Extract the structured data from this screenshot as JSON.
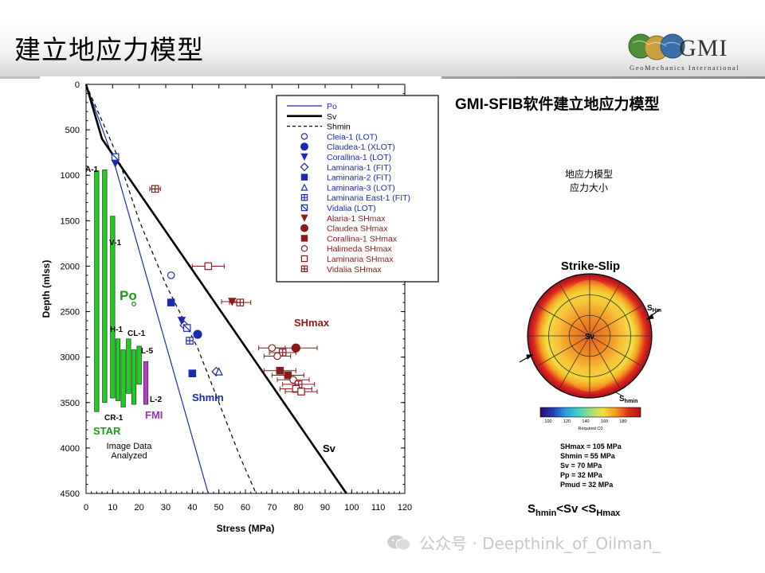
{
  "slide": {
    "title": "建立地应力模型",
    "logo": {
      "text": "GMI",
      "subtitle": "GeoMechanics International",
      "colors": [
        "#4f8f3a",
        "#c8a040",
        "#3a6fa8"
      ]
    },
    "right_title": "GMI-SFIB软件建立地应力模型",
    "right_note_lines": [
      "地应力模型",
      "应力大小"
    ],
    "stereonet": {
      "title": "Strike-Slip",
      "center_label": "Sv",
      "shmax_label": {
        "main": "S",
        "sub": "Hmax"
      },
      "shmin_label": {
        "main": "S",
        "sub": "hmin"
      },
      "colorbar_ticks": [
        "100",
        "120",
        "140",
        "160",
        "180"
      ],
      "colorbar_label": "Required C0",
      "colors": [
        "#2b0a6e",
        "#1f3fb5",
        "#2f9be0",
        "#3fd0c8",
        "#9ae07a",
        "#f0e040",
        "#f59a20",
        "#e0301e",
        "#b0101e"
      ]
    },
    "params": [
      "SHmax = 105 MPa",
      "Shmin = 55 MPa",
      "Sv = 70 MPa",
      "Pp = 32 MPa",
      "Pmud = 32 MPa"
    ],
    "relation": {
      "s1": "S",
      "s1_sub": "hmin",
      "mid": "<Sv <S",
      "s2_sub": "Hmax"
    },
    "watermark": "公众号 · Deepthink_of_Oilman_"
  },
  "chart_data": {
    "type": "scatter",
    "xlabel": "Stress (MPa)",
    "ylabel": "Depth (mlss)",
    "xlim": [
      0,
      120
    ],
    "ylim": [
      0,
      4500
    ],
    "y_inverted": true,
    "x_ticks": [
      0,
      10,
      20,
      30,
      40,
      50,
      60,
      70,
      80,
      90,
      100,
      110,
      120
    ],
    "y_ticks": [
      0,
      500,
      1000,
      1500,
      2000,
      2500,
      3000,
      3500,
      4000,
      4500
    ],
    "colors": {
      "blue": "#1a2ab0",
      "red": "#8b1a1a",
      "black": "#000000",
      "green": "#22cc22",
      "purple": "#b040c0",
      "shmax_text": "#8b1a1a",
      "p0_text": "#1a9a1a",
      "fmi_text": "#9a30b0"
    },
    "lines": [
      {
        "name": "Po",
        "style": "solid",
        "color": "#1a2ab0",
        "points": [
          [
            0,
            0
          ],
          [
            10,
            800
          ],
          [
            46,
            4500
          ]
        ]
      },
      {
        "name": "Sv",
        "style": "solid-bold",
        "color": "#000000",
        "points": [
          [
            0,
            0
          ],
          [
            6,
            600
          ],
          [
            98,
            4500
          ]
        ]
      },
      {
        "name": "Shmin",
        "style": "dashed",
        "color": "#000000",
        "points": [
          [
            0,
            0
          ],
          [
            12,
            800
          ],
          [
            20,
            1500
          ],
          [
            30,
            2200
          ],
          [
            42,
            2900
          ],
          [
            50,
            3500
          ],
          [
            58,
            4100
          ],
          [
            64,
            4500
          ]
        ]
      }
    ],
    "legend": {
      "placement": "top-right",
      "entries": [
        {
          "label": "Po",
          "symbol": "line",
          "color": "#1a2ab0"
        },
        {
          "label": "Sv",
          "symbol": "line-bold",
          "color": "#000000"
        },
        {
          "label": "Shmin",
          "symbol": "line-dashed",
          "color": "#000000"
        },
        {
          "label": "Cleia-1 (LOT)",
          "symbol": "circle-open",
          "color": "#1a2ab0"
        },
        {
          "label": "Claudea-1 (XLOT)",
          "symbol": "circle-filled",
          "color": "#1a2ab0"
        },
        {
          "label": "Corallina-1 (LOT)",
          "symbol": "triangle-down-filled",
          "color": "#1a2ab0"
        },
        {
          "label": "Laminaria-1 (FIT)",
          "symbol": "diamond-open",
          "color": "#1a2ab0"
        },
        {
          "label": "Laminaria-2 (FIT)",
          "symbol": "square-filled",
          "color": "#1a2ab0"
        },
        {
          "label": "Laminaria-3 (LOT)",
          "symbol": "triangle-up-open",
          "color": "#1a2ab0"
        },
        {
          "label": "Laminaria East-1 (FIT)",
          "symbol": "square-plus",
          "color": "#1a2ab0"
        },
        {
          "label": "Vidalia (LOT)",
          "symbol": "square-slash",
          "color": "#1a2ab0"
        },
        {
          "label": "Alaria-1 SHmax",
          "symbol": "triangle-down-filled",
          "color": "#8b1a1a"
        },
        {
          "label": "Claudea SHmax",
          "symbol": "circle-filled",
          "color": "#8b1a1a"
        },
        {
          "label": "Corallina-1 SHmax",
          "symbol": "square-filled",
          "color": "#8b1a1a"
        },
        {
          "label": "Halimeda SHmax",
          "symbol": "circle-open",
          "color": "#8b1a1a"
        },
        {
          "label": "Laminaria SHmax",
          "symbol": "square-open",
          "color": "#8b1a1a"
        },
        {
          "label": "Vidalia SHmax",
          "symbol": "square-plus",
          "color": "#8b1a1a"
        }
      ]
    },
    "points": [
      {
        "x": 11,
        "y": 800,
        "symbol": "square-slash",
        "color": "#1a2ab0"
      },
      {
        "x": 11,
        "y": 870,
        "symbol": "triangle-down-filled",
        "color": "#1a2ab0"
      },
      {
        "x": 32,
        "y": 2100,
        "symbol": "circle-open",
        "color": "#1a2ab0"
      },
      {
        "x": 32,
        "y": 2400,
        "symbol": "square-filled",
        "color": "#1a2ab0"
      },
      {
        "x": 36,
        "y": 2600,
        "symbol": "triangle-down-filled",
        "color": "#1a2ab0"
      },
      {
        "x": 37,
        "y": 2650,
        "symbol": "diamond-open",
        "color": "#1a2ab0"
      },
      {
        "x": 38,
        "y": 2680,
        "symbol": "square-slash",
        "color": "#1a2ab0"
      },
      {
        "x": 42,
        "y": 2750,
        "symbol": "circle-filled",
        "color": "#1a2ab0"
      },
      {
        "x": 39,
        "y": 2820,
        "symbol": "square-plus",
        "color": "#1a2ab0"
      },
      {
        "x": 40,
        "y": 3180,
        "symbol": "square-filled",
        "color": "#1a2ab0"
      },
      {
        "x": 49,
        "y": 3160,
        "symbol": "diamond-open",
        "color": "#1a2ab0"
      },
      {
        "x": 50,
        "y": 3160,
        "symbol": "triangle-up-open",
        "color": "#1a2ab0"
      },
      {
        "x": 26,
        "y": 1150,
        "symbol": "square-plus",
        "color": "#8b1a1a",
        "xerr": 2
      },
      {
        "x": 46,
        "y": 2000,
        "symbol": "square-open",
        "color": "#8b1a1a",
        "xerr": 6
      },
      {
        "x": 55,
        "y": 2390,
        "symbol": "triangle-down-filled",
        "color": "#8b1a1a",
        "xerr": 4
      },
      {
        "x": 58,
        "y": 2400,
        "symbol": "square-plus",
        "color": "#8b1a1a",
        "xerr": 4
      },
      {
        "x": 79,
        "y": 2900,
        "symbol": "circle-filled",
        "color": "#8b1a1a",
        "xerr": 8
      },
      {
        "x": 70,
        "y": 2900,
        "symbol": "circle-open",
        "color": "#8b1a1a",
        "xerr": 5
      },
      {
        "x": 74,
        "y": 2950,
        "symbol": "square-plus",
        "color": "#8b1a1a",
        "xerr": 5
      },
      {
        "x": 72,
        "y": 2990,
        "symbol": "circle-open",
        "color": "#8b1a1a",
        "xerr": 5
      },
      {
        "x": 73,
        "y": 3150,
        "symbol": "square-filled",
        "color": "#8b1a1a",
        "xerr": 6
      },
      {
        "x": 76,
        "y": 3200,
        "symbol": "square-filled",
        "color": "#8b1a1a",
        "xerr": 6
      },
      {
        "x": 78,
        "y": 3250,
        "symbol": "circle-open",
        "color": "#8b1a1a",
        "xerr": 6
      },
      {
        "x": 80,
        "y": 3300,
        "symbol": "square-plus",
        "color": "#8b1a1a",
        "xerr": 6
      },
      {
        "x": 79,
        "y": 3350,
        "symbol": "square-open",
        "color": "#8b1a1a",
        "xerr": 6
      },
      {
        "x": 81,
        "y": 3380,
        "symbol": "square-open",
        "color": "#8b1a1a",
        "xerr": 6
      }
    ],
    "bars": [
      {
        "label": "A-1",
        "x": 4,
        "top": 950,
        "bottom": 3600,
        "color": "#22cc22"
      },
      {
        "label": "",
        "x": 7,
        "top": 940,
        "bottom": 3500,
        "color": "#22cc22"
      },
      {
        "label": "V-1",
        "x": 10,
        "top": 1450,
        "bottom": 3450,
        "color": "#22cc22"
      },
      {
        "label": "H-1",
        "x": 12,
        "top": 2800,
        "bottom": 3480,
        "color": "#22cc22"
      },
      {
        "label": "",
        "x": 14,
        "top": 2920,
        "bottom": 3550,
        "color": "#22cc22"
      },
      {
        "label": "CL-1",
        "x": 16,
        "top": 2800,
        "bottom": 3400,
        "color": "#22cc22"
      },
      {
        "label": "CR-1",
        "x": 18,
        "top": 2920,
        "bottom": 3520,
        "color": "#22cc22"
      },
      {
        "label": "L-5",
        "x": 20,
        "top": 2880,
        "bottom": 3300,
        "color": "#22cc22"
      },
      {
        "label": "L-2",
        "x": 22.5,
        "top": 3050,
        "bottom": 3520,
        "color": "#b040c0"
      }
    ],
    "annotations": [
      "Po",
      "SHmax",
      "Shmin",
      "Sv",
      "STAR",
      "FMI",
      "Image Data",
      "Analyzed"
    ]
  }
}
